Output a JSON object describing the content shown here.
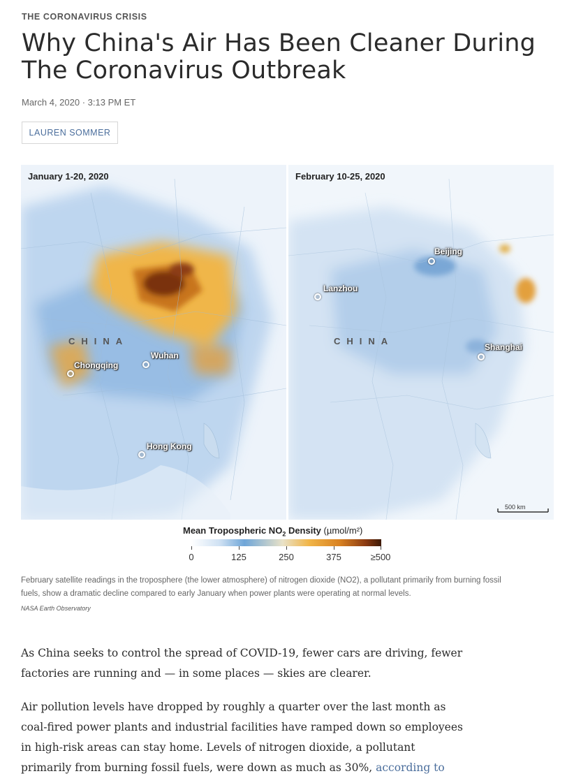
{
  "article": {
    "kicker": "THE CORONAVIRUS CRISIS",
    "headline": "Why China's Air Has Been Cleaner During The Coronavirus Outbreak",
    "dateline": "March 4, 2020 · 3:13 PM ET",
    "byline": "LAUREN SOMMER"
  },
  "figure": {
    "left_map": {
      "title": "January 1-20, 2020",
      "country": "CHINA",
      "places": [
        "Wuhan",
        "Chongqing",
        "Hong Kong"
      ]
    },
    "right_map": {
      "title": "February 10-25, 2020",
      "country": "CHINA",
      "places": [
        "Beijing",
        "Lanzhou",
        "Shanghai"
      ],
      "scale": "500 km"
    },
    "legend": {
      "title_main": "Mean Tropospheric NO",
      "title_sub": "2",
      "title_rest": " Density ",
      "unit": "(µmol/m²)",
      "ticks": [
        "0",
        "125",
        "250",
        "375",
        "≥500"
      ]
    },
    "caption": "February satellite readings in the troposphere (the lower atmosphere) of nitrogen dioxide (NO2), a pollutant primarily from burning fossil fuels, show a dramatic decline compared to early January when power plants were operating at normal levels.",
    "credit": "NASA Earth Observatory"
  },
  "body": {
    "p1": "As China seeks to control the spread of COVID-19, fewer cars are driving, fewer factories are running and — in some places — skies are clearer.",
    "p2_text": "Air pollution levels have dropped by roughly a quarter over the last month as coal-fired power plants and industrial facilities have ramped down so employees in high-risk areas can stay home. Levels of nitrogen dioxide, a pollutant primarily from burning fossil fuels, were down as much as 30%, ",
    "p2_link": "according to NASA",
    "p2_end": "."
  }
}
